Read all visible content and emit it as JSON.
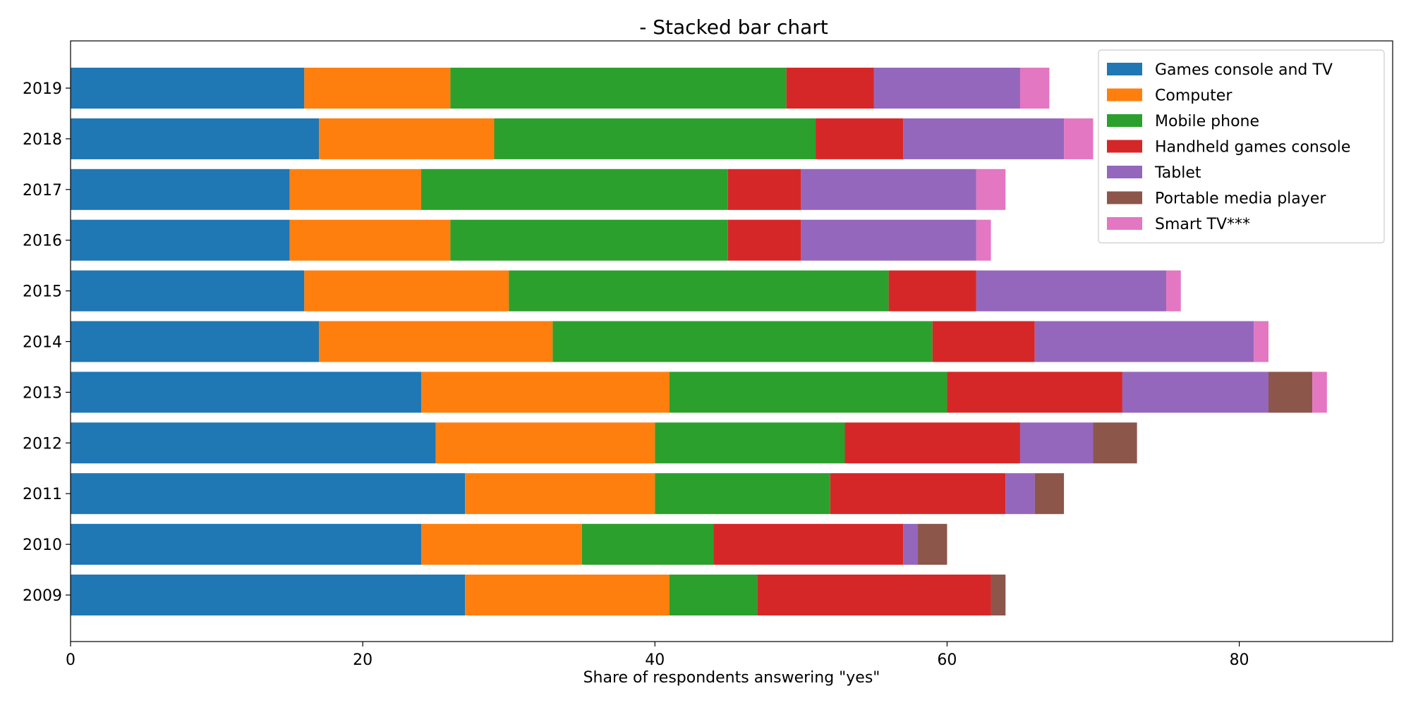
{
  "chart_data": {
    "type": "bar",
    "orientation": "horizontal",
    "stacked": true,
    "title": "- Stacked bar chart",
    "xlabel": "Share of respondents answering \"yes\"",
    "ylabel": "",
    "xlim": [
      0,
      90.5
    ],
    "xticks": [
      0,
      20,
      40,
      60,
      80
    ],
    "grid": false,
    "legend_position": "top-right",
    "categories": [
      "2009",
      "2010",
      "2011",
      "2012",
      "2013",
      "2014",
      "2015",
      "2016",
      "2017",
      "2018",
      "2019"
    ],
    "series": [
      {
        "name": "Games console and TV",
        "color": "#1f77b4",
        "values": [
          27,
          24,
          27,
          25,
          24,
          17,
          16,
          15,
          15,
          17,
          16
        ]
      },
      {
        "name": "Computer",
        "color": "#ff7f0e",
        "values": [
          14,
          11,
          13,
          15,
          17,
          16,
          14,
          11,
          9,
          12,
          10
        ]
      },
      {
        "name": "Mobile phone",
        "color": "#2ca02c",
        "values": [
          6,
          9,
          12,
          13,
          19,
          26,
          26,
          19,
          21,
          22,
          23
        ]
      },
      {
        "name": "Handheld games console",
        "color": "#d62728",
        "values": [
          16,
          13,
          12,
          12,
          12,
          7,
          6,
          5,
          5,
          6,
          6
        ]
      },
      {
        "name": "Tablet",
        "color": "#9467bd",
        "values": [
          0,
          1,
          2,
          5,
          10,
          15,
          13,
          12,
          12,
          11,
          10
        ]
      },
      {
        "name": "Portable media player",
        "color": "#8c564b",
        "values": [
          1,
          2,
          2,
          3,
          3,
          0,
          0,
          0,
          0,
          0,
          0
        ]
      },
      {
        "name": "Smart TV***",
        "color": "#e377c2",
        "values": [
          0,
          0,
          0,
          0,
          1,
          1,
          1,
          1,
          2,
          2,
          2
        ]
      }
    ]
  }
}
